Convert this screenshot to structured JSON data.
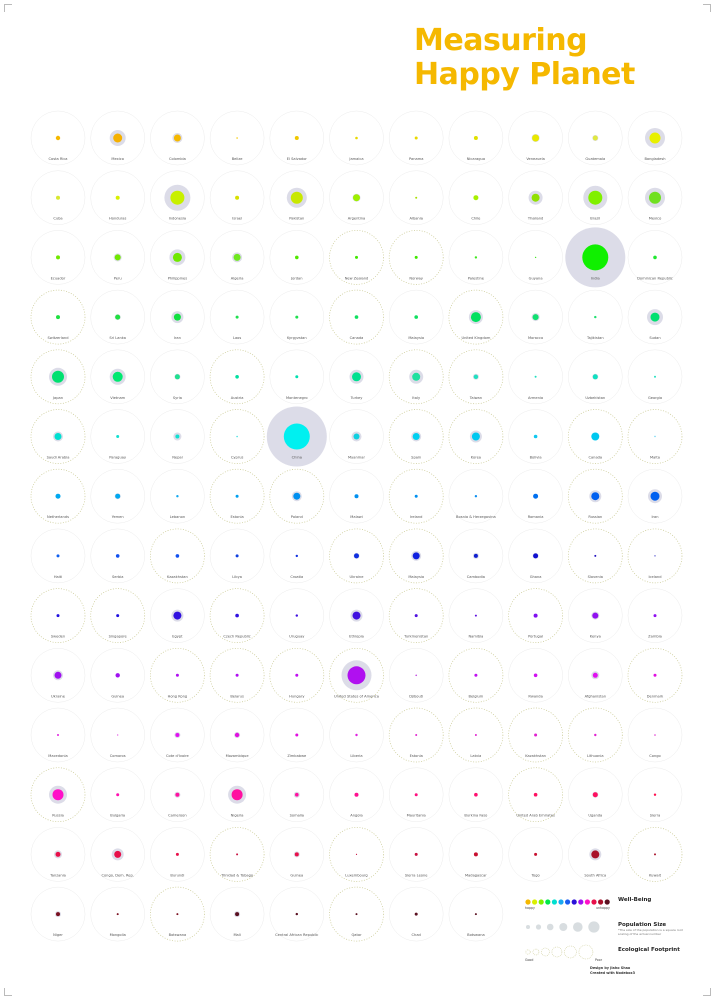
{
  "title": {
    "line1": "Measuring",
    "line2": "Happy Planet"
  },
  "legend": {
    "wellbeing_title": "Well-Being",
    "happy_label": "happy",
    "unhappy_label": "unhappy",
    "population_title": "Population Size",
    "population_note": "*The size of the population is a square root scaling of the actual number",
    "footprint_title": "Ecological Footprint",
    "good_label": "Good",
    "poor_label": "Poor",
    "wellbeing_colors": [
      "#f5b800",
      "#d9f000",
      "#7bf000",
      "#00e84a",
      "#00e0d0",
      "#1aa8f0",
      "#1a5cf0",
      "#2a10d8",
      "#a010f0",
      "#ff10c8",
      "#e8104a",
      "#a8102a",
      "#5a1020"
    ]
  },
  "credit": {
    "line1": "Design by Jiaho Shao",
    "line2": "Created with Nodebox3"
  },
  "countries": [
    {
      "name": "Costa Rica",
      "color": "#f5b800",
      "dot": 2.2,
      "pop": 0,
      "ring": "solid"
    },
    {
      "name": "Mexico",
      "color": "#f5b000",
      "dot": 4.5,
      "pop": 8,
      "ring": "solid"
    },
    {
      "name": "Colombia",
      "color": "#f5b800",
      "dot": 3.5,
      "pop": 5,
      "ring": "solid"
    },
    {
      "name": "Belize",
      "color": "#f5c800",
      "dot": 0.8,
      "pop": 0,
      "ring": "solid"
    },
    {
      "name": "El Salvador",
      "color": "#f0c800",
      "dot": 2,
      "pop": 0,
      "ring": "solid"
    },
    {
      "name": "Jamaica",
      "color": "#e8d800",
      "dot": 1.3,
      "pop": 0,
      "ring": "solid"
    },
    {
      "name": "Panama",
      "color": "#e8d800",
      "dot": 1.5,
      "pop": 0,
      "ring": "solid"
    },
    {
      "name": "Nicaragua",
      "color": "#e0e000",
      "dot": 2,
      "pop": 0,
      "ring": "solid"
    },
    {
      "name": "Venezuela",
      "color": "#e8e800",
      "dot": 3.5,
      "pop": 4,
      "ring": "solid"
    },
    {
      "name": "Guatemala",
      "color": "#e0e840",
      "dot": 2.5,
      "pop": 3,
      "ring": "solid"
    },
    {
      "name": "Bangladesh",
      "color": "#e8f000",
      "dot": 5.5,
      "pop": 10,
      "ring": "solid"
    },
    {
      "name": "Cuba",
      "color": "#d8e830",
      "dot": 2,
      "pop": 0,
      "ring": "solid"
    },
    {
      "name": "Honduras",
      "color": "#d8f000",
      "dot": 2,
      "pop": 0,
      "ring": "solid"
    },
    {
      "name": "Indonesia",
      "color": "#c8f000",
      "dot": 7,
      "pop": 13,
      "ring": "solid"
    },
    {
      "name": "Israel",
      "color": "#d8e000",
      "dot": 2,
      "pop": 0,
      "ring": "solid"
    },
    {
      "name": "Pakistan",
      "color": "#c8e800",
      "dot": 6,
      "pop": 10,
      "ring": "solid"
    },
    {
      "name": "Argentina",
      "color": "#9ef000",
      "dot": 3.5,
      "pop": 4,
      "ring": "solid"
    },
    {
      "name": "Albania",
      "color": "#a8e000",
      "dot": 1,
      "pop": 0,
      "ring": "solid"
    },
    {
      "name": "Chile",
      "color": "#a8f000",
      "dot": 2.5,
      "pop": 0,
      "ring": "solid"
    },
    {
      "name": "Thailand",
      "color": "#90e000",
      "dot": 4,
      "pop": 7,
      "ring": "solid"
    },
    {
      "name": "Brazil",
      "color": "#80f000",
      "dot": 7,
      "pop": 12,
      "ring": "solid"
    },
    {
      "name": "Mexico",
      "color": "#70e020",
      "dot": 6,
      "pop": 10,
      "ring": "solid"
    },
    {
      "name": "Ecuador",
      "color": "#70e800",
      "dot": 2,
      "pop": 0,
      "ring": "solid"
    },
    {
      "name": "Peru",
      "color": "#70e800",
      "dot": 3,
      "pop": 4,
      "ring": "solid"
    },
    {
      "name": "Philippines",
      "color": "#70e800",
      "dot": 4.5,
      "pop": 8,
      "ring": "solid"
    },
    {
      "name": "Algeria",
      "color": "#70e820",
      "dot": 3.5,
      "pop": 5,
      "ring": "solid"
    },
    {
      "name": "Jordan",
      "color": "#50e800",
      "dot": 1.8,
      "pop": 0,
      "ring": "solid"
    },
    {
      "name": "New Zealand",
      "color": "#40e800",
      "dot": 1.5,
      "pop": 0,
      "ring": "dotted"
    },
    {
      "name": "Norway",
      "color": "#40e800",
      "dot": 1.5,
      "pop": 0,
      "ring": "dotted"
    },
    {
      "name": "Palestine",
      "color": "#40e820",
      "dot": 1.2,
      "pop": 0,
      "ring": "solid"
    },
    {
      "name": "Guyana",
      "color": "#40e820",
      "dot": 0.7,
      "pop": 0,
      "ring": "solid"
    },
    {
      "name": "India",
      "color": "#10f000",
      "dot": 13,
      "pop": 30,
      "ring": "solid"
    },
    {
      "name": "Dominican Republic",
      "color": "#20e830",
      "dot": 1.8,
      "pop": 0,
      "ring": "solid"
    },
    {
      "name": "Switzerland",
      "color": "#20e040",
      "dot": 2,
      "pop": 0,
      "ring": "dotted"
    },
    {
      "name": "Sri Lanka",
      "color": "#20e040",
      "dot": 2.5,
      "pop": 3,
      "ring": "solid"
    },
    {
      "name": "Iran",
      "color": "#10e040",
      "dot": 3.5,
      "pop": 6,
      "ring": "solid"
    },
    {
      "name": "Laos",
      "color": "#20e050",
      "dot": 1.5,
      "pop": 0,
      "ring": "solid"
    },
    {
      "name": "Kyrgyzstan",
      "color": "#20e050",
      "dot": 1.5,
      "pop": 0,
      "ring": "solid"
    },
    {
      "name": "Canada",
      "color": "#10e060",
      "dot": 1.8,
      "pop": 0,
      "ring": "dotted"
    },
    {
      "name": "Malaysia",
      "color": "#10e060",
      "dot": 1.8,
      "pop": 0,
      "ring": "solid"
    },
    {
      "name": "United Kingdom",
      "color": "#00e060",
      "dot": 5,
      "pop": 7,
      "ring": "dotted"
    },
    {
      "name": "Moracco",
      "color": "#10e070",
      "dot": 3,
      "pop": 4,
      "ring": "solid"
    },
    {
      "name": "Tajikistan",
      "color": "#20e070",
      "dot": 1.2,
      "pop": 0,
      "ring": "solid"
    },
    {
      "name": "Sudan",
      "color": "#00e070",
      "dot": 4.5,
      "pop": 8,
      "ring": "solid"
    },
    {
      "name": "Japan",
      "color": "#00e070",
      "dot": 6,
      "pop": 9,
      "ring": "dotted"
    },
    {
      "name": "Vietnam",
      "color": "#00e870",
      "dot": 5,
      "pop": 8,
      "ring": "solid"
    },
    {
      "name": "Syria",
      "color": "#20e090",
      "dot": 2.5,
      "pop": 3,
      "ring": "solid"
    },
    {
      "name": "Austria",
      "color": "#00e0a0",
      "dot": 1.8,
      "pop": 0,
      "ring": "dotted"
    },
    {
      "name": "Montenegro",
      "color": "#00e0b0",
      "dot": 1.5,
      "pop": 0,
      "ring": "solid"
    },
    {
      "name": "Turkey",
      "color": "#00e090",
      "dot": 4.5,
      "pop": 7,
      "ring": "solid"
    },
    {
      "name": "Italy",
      "color": "#20e0a0",
      "dot": 4,
      "pop": 7,
      "ring": "dotted"
    },
    {
      "name": "Taiwan",
      "color": "#20e0c0",
      "dot": 2.2,
      "pop": 3,
      "ring": "dotted"
    },
    {
      "name": "Armenia",
      "color": "#20e0c0",
      "dot": 1,
      "pop": 0,
      "ring": "solid"
    },
    {
      "name": "Uzbekistan",
      "color": "#10e0c0",
      "dot": 2.5,
      "pop": 3,
      "ring": "solid"
    },
    {
      "name": "Georgia",
      "color": "#20e0c0",
      "dot": 1,
      "pop": 0,
      "ring": "solid"
    },
    {
      "name": "Saudi Arabia",
      "color": "#00e0d0",
      "dot": 3.5,
      "pop": 5,
      "ring": "dotted"
    },
    {
      "name": "Paraguay",
      "color": "#10e0d0",
      "dot": 1.5,
      "pop": 0,
      "ring": "solid"
    },
    {
      "name": "Nepal",
      "color": "#10e0d0",
      "dot": 2,
      "pop": 4,
      "ring": "solid"
    },
    {
      "name": "Cyprus",
      "color": "#40e0e0",
      "dot": 0.8,
      "pop": 0,
      "ring": "dotted"
    },
    {
      "name": "China",
      "color": "#00f0f0",
      "dot": 13,
      "pop": 30,
      "ring": "solid"
    },
    {
      "name": "Myanmar",
      "color": "#10d0e0",
      "dot": 3,
      "pop": 5,
      "ring": "solid"
    },
    {
      "name": "Spain",
      "color": "#00d0f0",
      "dot": 3.5,
      "pop": 5,
      "ring": "dotted"
    },
    {
      "name": "Korea",
      "color": "#00c8f0",
      "dot": 4,
      "pop": 6,
      "ring": "dotted"
    },
    {
      "name": "Bolivia",
      "color": "#10c8f0",
      "dot": 1.8,
      "pop": 0,
      "ring": "solid"
    },
    {
      "name": "Canada",
      "color": "#00c8f0",
      "dot": 4,
      "pop": 0,
      "ring": "dotted"
    },
    {
      "name": "Malta",
      "color": "#60d0f0",
      "dot": 0.7,
      "pop": 0,
      "ring": "dotted"
    },
    {
      "name": "Netherlands",
      "color": "#00a8f0",
      "dot": 2.5,
      "pop": 0,
      "ring": "dotted"
    },
    {
      "name": "Yemen",
      "color": "#00a8f0",
      "dot": 2.5,
      "pop": 3,
      "ring": "solid"
    },
    {
      "name": "Lebanon",
      "color": "#10a8f0",
      "dot": 1.2,
      "pop": 0,
      "ring": "solid"
    },
    {
      "name": "Estonia",
      "color": "#00a0f0",
      "dot": 1.5,
      "pop": 0,
      "ring": "dotted"
    },
    {
      "name": "Poland",
      "color": "#0090f0",
      "dot": 3.5,
      "pop": 5,
      "ring": "dotted"
    },
    {
      "name": "Malawi",
      "color": "#0090f0",
      "dot": 2,
      "pop": 0,
      "ring": "solid"
    },
    {
      "name": "Ireland",
      "color": "#0090f0",
      "dot": 1.5,
      "pop": 0,
      "ring": "dotted"
    },
    {
      "name": "Bosnia & Herzegovina",
      "color": "#1090f0",
      "dot": 1.2,
      "pop": 0,
      "ring": "solid"
    },
    {
      "name": "Romania",
      "color": "#0070f0",
      "dot": 2.5,
      "pop": 0,
      "ring": "solid"
    },
    {
      "name": "Russian",
      "color": "#0060f0",
      "dot": 4,
      "pop": 6,
      "ring": "dotted"
    },
    {
      "name": "Iran",
      "color": "#0060f0",
      "dot": 4.5,
      "pop": 7,
      "ring": "solid"
    },
    {
      "name": "Haiti",
      "color": "#1060f0",
      "dot": 1.5,
      "pop": 0,
      "ring": "solid"
    },
    {
      "name": "Serbia",
      "color": "#1050f0",
      "dot": 1.8,
      "pop": 0,
      "ring": "solid"
    },
    {
      "name": "Kazakhstan",
      "color": "#1050f0",
      "dot": 1.8,
      "pop": 0,
      "ring": "dotted"
    },
    {
      "name": "Libya",
      "color": "#1040e0",
      "dot": 1.5,
      "pop": 0,
      "ring": "solid"
    },
    {
      "name": "Croatia",
      "color": "#1030e0",
      "dot": 1.2,
      "pop": 0,
      "ring": "solid"
    },
    {
      "name": "Ukraine",
      "color": "#1030e0",
      "dot": 2.5,
      "pop": 3,
      "ring": "dotted"
    },
    {
      "name": "Malaysia",
      "color": "#1020e0",
      "dot": 3.5,
      "pop": 5,
      "ring": "dotted"
    },
    {
      "name": "Cambodia",
      "color": "#1020d0",
      "dot": 2,
      "pop": 3,
      "ring": "solid"
    },
    {
      "name": "Ghana",
      "color": "#1010d0",
      "dot": 2.5,
      "pop": 3,
      "ring": "solid"
    },
    {
      "name": "Slovenia",
      "color": "#2010c0",
      "dot": 1,
      "pop": 0,
      "ring": "dotted"
    },
    {
      "name": "Iceland",
      "color": "#2020c0",
      "dot": 0.6,
      "pop": 0,
      "ring": "dotted"
    },
    {
      "name": "Sweden",
      "color": "#2010e0",
      "dot": 1.5,
      "pop": 0,
      "ring": "dotted"
    },
    {
      "name": "Singapore",
      "color": "#2010e0",
      "dot": 1.5,
      "pop": 0,
      "ring": "dotted"
    },
    {
      "name": "Egypt",
      "color": "#3010e0",
      "dot": 4,
      "pop": 6,
      "ring": "solid"
    },
    {
      "name": "Czech Republic",
      "color": "#3010e0",
      "dot": 1.8,
      "pop": 0,
      "ring": "dotted"
    },
    {
      "name": "Uruguay",
      "color": "#4010e0",
      "dot": 1.2,
      "pop": 0,
      "ring": "solid"
    },
    {
      "name": "Ethiopia",
      "color": "#4010e0",
      "dot": 4,
      "pop": 6,
      "ring": "solid"
    },
    {
      "name": "Turkmenistan",
      "color": "#5010e0",
      "dot": 1.5,
      "pop": 0,
      "ring": "dotted"
    },
    {
      "name": "Namibia",
      "color": "#6010e0",
      "dot": 1,
      "pop": 0,
      "ring": "solid"
    },
    {
      "name": "Portugal",
      "color": "#8010f0",
      "dot": 2,
      "pop": 0,
      "ring": "dotted"
    },
    {
      "name": "Kenya",
      "color": "#9010f0",
      "dot": 3,
      "pop": 4,
      "ring": "solid"
    },
    {
      "name": "Zambia",
      "color": "#9010f0",
      "dot": 1.5,
      "pop": 0,
      "ring": "solid"
    },
    {
      "name": "Ukraine",
      "color": "#a010f0",
      "dot": 3.5,
      "pop": 5,
      "ring": "solid"
    },
    {
      "name": "Guinea",
      "color": "#a010f0",
      "dot": 2.2,
      "pop": 0,
      "ring": "solid"
    },
    {
      "name": "Hong Kong",
      "color": "#b010f0",
      "dot": 1.5,
      "pop": 0,
      "ring": "dotted"
    },
    {
      "name": "Belarus",
      "color": "#b010f0",
      "dot": 1.5,
      "pop": 0,
      "ring": "dotted"
    },
    {
      "name": "Hungary",
      "color": "#c010f0",
      "dot": 1.5,
      "pop": 0,
      "ring": "dotted"
    },
    {
      "name": "United States of America",
      "color": "#b010f0",
      "dot": 9,
      "pop": 15,
      "ring": "dotted"
    },
    {
      "name": "Djibouti",
      "color": "#c040e0",
      "dot": 0.8,
      "pop": 0,
      "ring": "solid"
    },
    {
      "name": "Belgium",
      "color": "#c010f0",
      "dot": 1.5,
      "pop": 0,
      "ring": "dotted"
    },
    {
      "name": "Rwanda",
      "color": "#d010f0",
      "dot": 1.8,
      "pop": 0,
      "ring": "solid"
    },
    {
      "name": "Afghanistan",
      "color": "#e010f0",
      "dot": 2.5,
      "pop": 4,
      "ring": "solid"
    },
    {
      "name": "Denmark",
      "color": "#e010e0",
      "dot": 1.5,
      "pop": 0,
      "ring": "dotted"
    },
    {
      "name": "Macedonia",
      "color": "#e020e0",
      "dot": 1,
      "pop": 0,
      "ring": "solid"
    },
    {
      "name": "Comoros",
      "color": "#e030e0",
      "dot": 0.6,
      "pop": 0,
      "ring": "solid"
    },
    {
      "name": "Cote d'Ivoire",
      "color": "#e010f0",
      "dot": 2,
      "pop": 3,
      "ring": "solid"
    },
    {
      "name": "Mozambique",
      "color": "#e010e0",
      "dot": 2.2,
      "pop": 3,
      "ring": "solid"
    },
    {
      "name": "Zimbabwe",
      "color": "#e010e0",
      "dot": 1.5,
      "pop": 0,
      "ring": "solid"
    },
    {
      "name": "Liberia",
      "color": "#e020e0",
      "dot": 1.2,
      "pop": 0,
      "ring": "solid"
    },
    {
      "name": "Estonia",
      "color": "#e020d0",
      "dot": 1,
      "pop": 0,
      "ring": "dotted"
    },
    {
      "name": "Latvia",
      "color": "#e020d0",
      "dot": 1,
      "pop": 0,
      "ring": "dotted"
    },
    {
      "name": "Kazakhstan",
      "color": "#e020d0",
      "dot": 1.5,
      "pop": 0,
      "ring": "dotted"
    },
    {
      "name": "Lithuania",
      "color": "#e020d0",
      "dot": 1.2,
      "pop": 0,
      "ring": "dotted"
    },
    {
      "name": "Congo",
      "color": "#e030d0",
      "dot": 0.8,
      "pop": 0,
      "ring": "solid"
    },
    {
      "name": "Russia",
      "color": "#ff10c8",
      "dot": 5.5,
      "pop": 9,
      "ring": "dotted"
    },
    {
      "name": "Bulgaria",
      "color": "#ff10b0",
      "dot": 1.5,
      "pop": 0,
      "ring": "solid"
    },
    {
      "name": "Cameroon",
      "color": "#ff10a0",
      "dot": 2,
      "pop": 3,
      "ring": "solid"
    },
    {
      "name": "Nigeria",
      "color": "#ff10a0",
      "dot": 5.5,
      "pop": 9,
      "ring": "solid"
    },
    {
      "name": "Somalia",
      "color": "#ff10a0",
      "dot": 1.8,
      "pop": 3,
      "ring": "solid"
    },
    {
      "name": "Angola",
      "color": "#ff1090",
      "dot": 2,
      "pop": 0,
      "ring": "solid"
    },
    {
      "name": "Mauritania",
      "color": "#ff1080",
      "dot": 1.5,
      "pop": 0,
      "ring": "solid"
    },
    {
      "name": "Burkina Faso",
      "color": "#ff1070",
      "dot": 1.8,
      "pop": 0,
      "ring": "solid"
    },
    {
      "name": "United Arab Emirates",
      "color": "#ff1060",
      "dot": 1.8,
      "pop": 0,
      "ring": "dotted"
    },
    {
      "name": "Uganda",
      "color": "#ff1060",
      "dot": 2.5,
      "pop": 3,
      "ring": "solid"
    },
    {
      "name": "Sierra",
      "color": "#ff1050",
      "dot": 1.2,
      "pop": 0,
      "ring": "solid"
    },
    {
      "name": "Tanzania",
      "color": "#e8104a",
      "dot": 2.5,
      "pop": 4,
      "ring": "solid"
    },
    {
      "name": "Congo, Dem. Rep.",
      "color": "#e8104a",
      "dot": 3.5,
      "pop": 6,
      "ring": "solid"
    },
    {
      "name": "Burundi",
      "color": "#e8104a",
      "dot": 1.5,
      "pop": 0,
      "ring": "solid"
    },
    {
      "name": "Trinidad & Tobago",
      "color": "#c81040",
      "dot": 1,
      "pop": 0,
      "ring": "dotted"
    },
    {
      "name": "Guinea",
      "color": "#e8104a",
      "dot": 2,
      "pop": 3,
      "ring": "solid"
    },
    {
      "name": "Luxembourg",
      "color": "#c81040",
      "dot": 0.6,
      "pop": 0,
      "ring": "dotted"
    },
    {
      "name": "Sierra Leone",
      "color": "#c81040",
      "dot": 1.5,
      "pop": 0,
      "ring": "solid"
    },
    {
      "name": "Madagascar",
      "color": "#c81030",
      "dot": 2,
      "pop": 0,
      "ring": "solid"
    },
    {
      "name": "Togo",
      "color": "#c81030",
      "dot": 1.5,
      "pop": 0,
      "ring": "solid"
    },
    {
      "name": "South Africa",
      "color": "#a8102a",
      "dot": 4,
      "pop": 6,
      "ring": "solid"
    },
    {
      "name": "Kuwait",
      "color": "#a8102a",
      "dot": 1,
      "pop": 0,
      "ring": "dotted"
    },
    {
      "name": "Niger",
      "color": "#7a1020",
      "dot": 2,
      "pop": 3,
      "ring": "solid"
    },
    {
      "name": "Mongolia",
      "color": "#7a1020",
      "dot": 1,
      "pop": 0,
      "ring": "solid"
    },
    {
      "name": "Botswana",
      "color": "#7a1020",
      "dot": 1,
      "pop": 0,
      "ring": "dotted"
    },
    {
      "name": "Mali",
      "color": "#5a1020",
      "dot": 2,
      "pop": 3,
      "ring": "solid"
    },
    {
      "name": "Central African Republic",
      "color": "#5a1020",
      "dot": 1.2,
      "pop": 0,
      "ring": "solid"
    },
    {
      "name": "Qatar",
      "color": "#5a1020",
      "dot": 1,
      "pop": 0,
      "ring": "dotted"
    },
    {
      "name": "Chad",
      "color": "#5a1020",
      "dot": 1.5,
      "pop": 0,
      "ring": "solid"
    },
    {
      "name": "Botswana",
      "color": "#5a1020",
      "dot": 1,
      "pop": 0,
      "ring": "solid"
    }
  ]
}
